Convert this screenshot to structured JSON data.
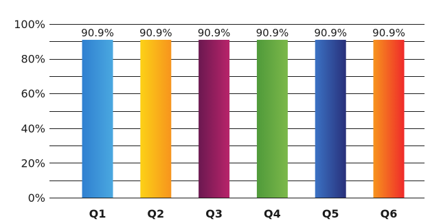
{
  "chart_data": {
    "type": "bar",
    "title": "",
    "xlabel": "",
    "ylabel": "",
    "categories": [
      "Q1",
      "Q2",
      "Q3",
      "Q4",
      "Q5",
      "Q6"
    ],
    "values": [
      90.9,
      90.9,
      90.9,
      90.9,
      90.9,
      90.9
    ],
    "value_labels": [
      "90.9%",
      "90.9%",
      "90.9%",
      "90.9%",
      "90.9%",
      "90.9%"
    ],
    "ylim": [
      0,
      100
    ],
    "yticks": [
      0,
      20,
      40,
      60,
      80,
      100
    ],
    "ytick_labels": [
      "0%",
      "20%",
      "40%",
      "60%",
      "80%",
      "100%"
    ],
    "grid": true,
    "legend": "none",
    "bar_gradients": [
      [
        "#2f7fd0",
        "#4aa8e0"
      ],
      [
        "#fcd116",
        "#f7941d"
      ],
      [
        "#6b1850",
        "#b8246a"
      ],
      [
        "#4f9a3a",
        "#7cb84a"
      ],
      [
        "#3b72c4",
        "#28307a"
      ],
      [
        "#f7941d",
        "#ef2a2a"
      ]
    ]
  }
}
